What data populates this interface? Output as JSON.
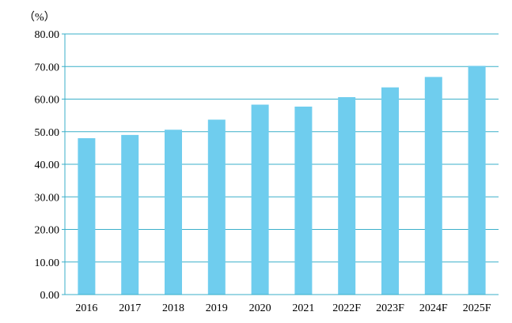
{
  "chart_data": {
    "type": "bar",
    "unit_label": "（%）",
    "categories": [
      "2016",
      "2017",
      "2018",
      "2019",
      "2020",
      "2021",
      "2022F",
      "2023F",
      "2024F",
      "2025F"
    ],
    "values": [
      48.0,
      49.0,
      50.6,
      53.7,
      58.3,
      57.7,
      60.6,
      63.6,
      66.8,
      70.2
    ],
    "ylim": [
      0,
      80
    ],
    "yticks": [
      "0.00",
      "10.00",
      "20.00",
      "30.00",
      "40.00",
      "50.00",
      "60.00",
      "70.00",
      "80.00"
    ],
    "grid": true,
    "colors": {
      "bar": "#6FCDEE",
      "grid": "#3AAFC9",
      "axis": "#3AAFC9"
    }
  }
}
